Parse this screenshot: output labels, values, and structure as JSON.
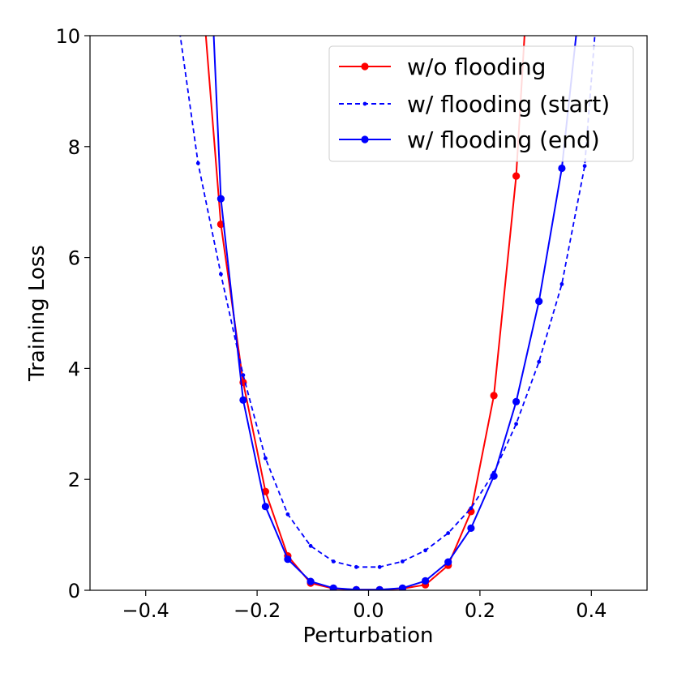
{
  "chart_data": {
    "type": "line",
    "title": "",
    "xlabel": "Perturbation",
    "ylabel": "Training Loss",
    "xlim": [
      -0.5,
      0.5
    ],
    "ylim": [
      0,
      10
    ],
    "xticks": [
      -0.4,
      -0.2,
      0.0,
      0.2,
      0.4
    ],
    "xtick_labels": [
      "−0.4",
      "−0.2",
      "0.0",
      "0.2",
      "0.4"
    ],
    "yticks": [
      0,
      2,
      4,
      6,
      8,
      10
    ],
    "ytick_labels": [
      "0",
      "2",
      "4",
      "6",
      "8",
      "10"
    ],
    "grid": false,
    "legend_position": "top-right",
    "series": [
      {
        "name": "w/o flooding",
        "color": "#ff0000",
        "line_style": "solid",
        "marker": "circle-large",
        "x": [
          -0.34,
          -0.3,
          -0.265,
          -0.225,
          -0.185,
          -0.145,
          -0.104,
          -0.063,
          -0.022,
          0.02,
          0.061,
          0.102,
          0.143,
          0.184,
          0.225,
          0.265,
          0.283
        ],
        "y": [
          16,
          11,
          6.6,
          3.75,
          1.78,
          0.62,
          0.13,
          0.03,
          0.01,
          0.01,
          0.03,
          0.1,
          0.45,
          1.42,
          3.51,
          7.47,
          10.5
        ]
      },
      {
        "name": "w/ flooding (start)",
        "color": "#0000ff",
        "line_style": "dashed",
        "marker": "circle-small",
        "x": [
          -0.345,
          -0.306,
          -0.265,
          -0.225,
          -0.185,
          -0.145,
          -0.104,
          -0.063,
          -0.022,
          0.02,
          0.061,
          0.102,
          0.143,
          0.184,
          0.225,
          0.265,
          0.306,
          0.347,
          0.388,
          0.41
        ],
        "y": [
          10.5,
          7.7,
          5.7,
          3.88,
          2.38,
          1.37,
          0.8,
          0.52,
          0.42,
          0.42,
          0.52,
          0.72,
          1.03,
          1.48,
          2.12,
          3.0,
          4.12,
          5.52,
          7.65,
          10.5
        ]
      },
      {
        "name": "w/ flooding (end)",
        "color": "#0000ff",
        "line_style": "solid",
        "marker": "circle-large",
        "x": [
          -0.28,
          -0.265,
          -0.225,
          -0.185,
          -0.145,
          -0.104,
          -0.063,
          -0.022,
          0.02,
          0.061,
          0.102,
          0.143,
          0.184,
          0.225,
          0.265,
          0.306,
          0.347,
          0.378
        ],
        "y": [
          10.5,
          7.06,
          3.43,
          1.51,
          0.56,
          0.16,
          0.04,
          0.01,
          0.01,
          0.04,
          0.17,
          0.51,
          1.12,
          2.06,
          3.4,
          5.21,
          7.61,
          10.5
        ]
      }
    ]
  }
}
